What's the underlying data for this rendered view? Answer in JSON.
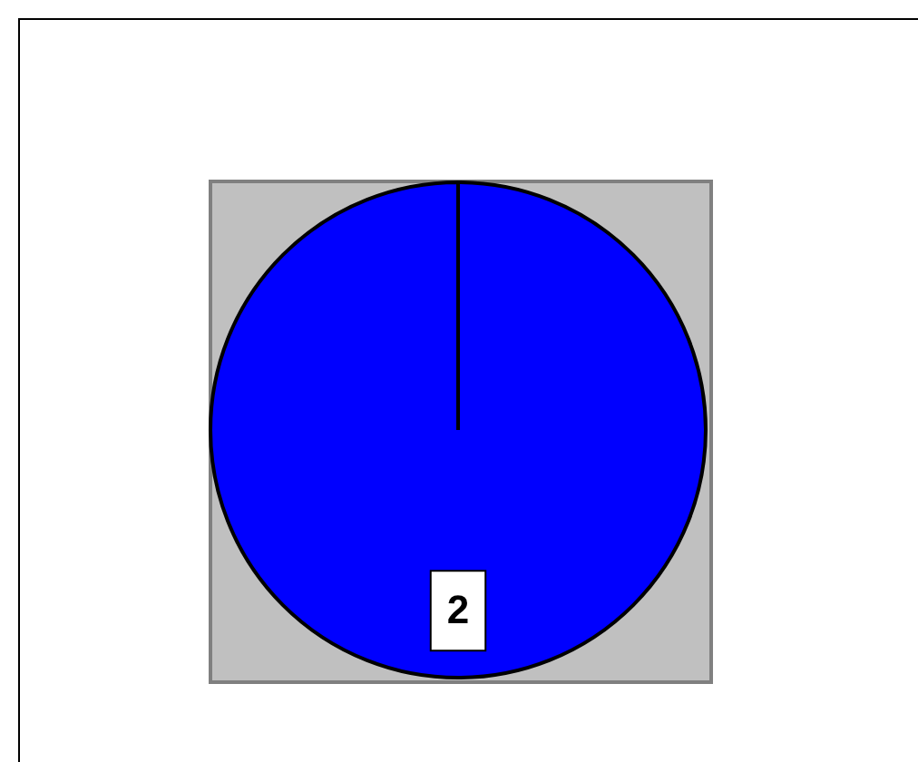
{
  "chart_data": {
    "type": "pie",
    "categories": [
      null
    ],
    "values": [
      2
    ],
    "colors": [
      "#0000ff"
    ],
    "data_labels": true,
    "legend": false
  }
}
